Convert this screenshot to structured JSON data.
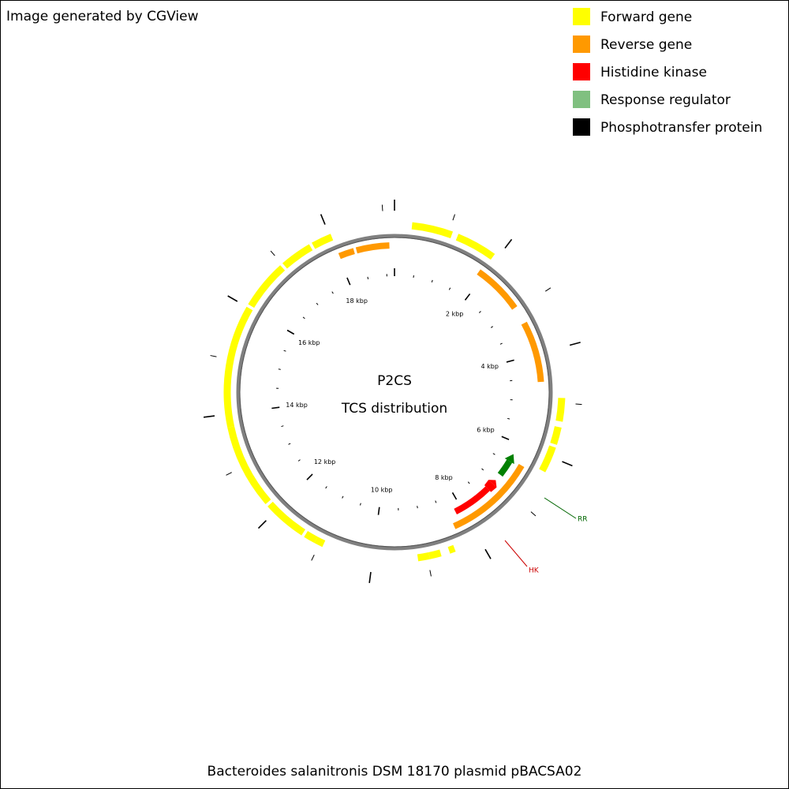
{
  "header": {
    "text": "Image generated by CGView"
  },
  "legend": {
    "items": [
      {
        "label": "Forward gene"
      },
      {
        "label": "Reverse gene"
      },
      {
        "label": "Histidine kinase"
      },
      {
        "label": "Response regulator"
      },
      {
        "label": "Phosphotransfer protein"
      }
    ]
  },
  "center": {
    "title": "P2CS",
    "subtitle": "TCS distribution"
  },
  "scale_labels": [
    "2 kbp",
    "4 kbp",
    "6 kbp",
    "8 kbp",
    "10 kbp",
    "12 kbp",
    "14 kbp",
    "16 kbp",
    "18 kbp"
  ],
  "annotations": {
    "rr": "RR",
    "hk": "HK"
  },
  "footer": {
    "text": "Bacteroides salanitronis DSM 18170 plasmid pBACSA02"
  }
}
